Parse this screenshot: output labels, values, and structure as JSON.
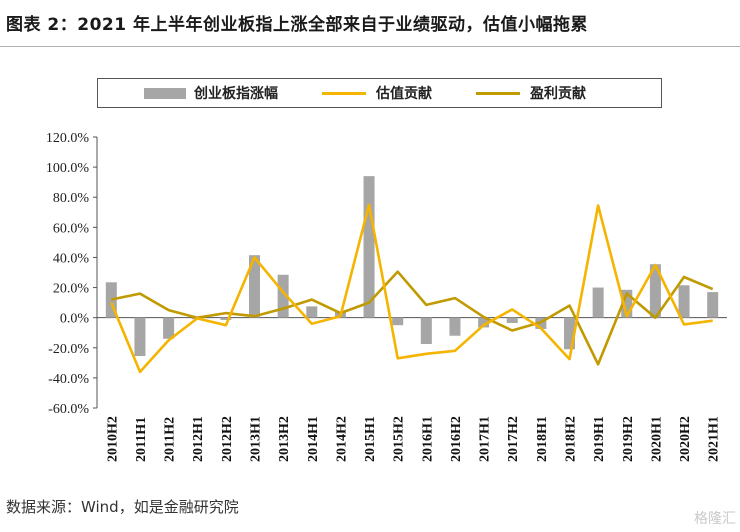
{
  "title": "图表 2：2021 年上半年创业板指上涨全部来自于业绩驱动，估值小幅拖累",
  "source": "数据来源：Wind，如是金融研究院",
  "watermark": "格隆汇",
  "colors": {
    "bar": "#a6a6a6",
    "valuation": "#f5b400",
    "earnings": "#c09a00",
    "axis": "#555555"
  },
  "chart_data": {
    "type": "bar",
    "categories": [
      "2010H2",
      "2011H1",
      "2011H2",
      "2012H1",
      "2012H2",
      "2013H1",
      "2013H2",
      "2014H1",
      "2014H2",
      "2015H1",
      "2015H2",
      "2016H1",
      "2016H2",
      "2017H1",
      "2017H2",
      "2018H1",
      "2018H2",
      "2019H1",
      "2019H2",
      "2020H1",
      "2020H2",
      "2021H1"
    ],
    "series": [
      {
        "name": "创业板指涨幅",
        "kind": "bar",
        "values": [
          23.5,
          -25.5,
          -14,
          -1,
          -1.5,
          41.5,
          28.5,
          7.5,
          4,
          94,
          -5,
          -17.5,
          -12,
          -6.5,
          -3.5,
          -7.5,
          -21,
          20,
          18.5,
          35.5,
          21.5,
          17
        ]
      },
      {
        "name": "估值贡献",
        "kind": "line",
        "values": [
          10,
          -36,
          -15,
          -0.5,
          -5,
          40,
          17,
          -4,
          1,
          75,
          -27,
          -24,
          -22,
          -5,
          5.5,
          -7,
          -27.5,
          74.5,
          1,
          35,
          -4.5,
          -2
        ]
      },
      {
        "name": "盈利贡献",
        "kind": "line",
        "values": [
          12,
          16,
          5,
          0,
          3,
          1,
          6,
          12,
          3,
          10,
          30.5,
          8.5,
          13,
          0.5,
          -8.5,
          -3,
          8,
          -31,
          16,
          0,
          27,
          19
        ]
      }
    ],
    "ylim": [
      -60,
      120
    ],
    "yticks": [
      "-60.0%",
      "-40.0%",
      "-20.0%",
      "0.0%",
      "20.0%",
      "40.0%",
      "60.0%",
      "80.0%",
      "100.0%",
      "120.0%"
    ],
    "legend_position": "top",
    "grid": false
  }
}
